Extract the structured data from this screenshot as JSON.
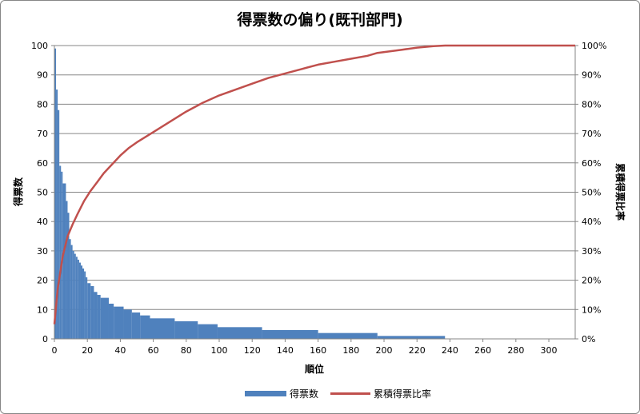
{
  "chart_data": {
    "type": "bar+line",
    "title": "得票数の偏り(既刊部門)",
    "xlabel": "順位",
    "ylabel": "得票数",
    "y2label": "累積得票比率",
    "xlim": [
      0,
      316
    ],
    "ylim": [
      0,
      100
    ],
    "y2lim": [
      0,
      100
    ],
    "x_ticks": [
      0,
      20,
      40,
      60,
      80,
      100,
      120,
      140,
      160,
      180,
      200,
      220,
      240,
      260,
      280,
      300
    ],
    "y_ticks": [
      0,
      10,
      20,
      30,
      40,
      50,
      60,
      70,
      80,
      90,
      100
    ],
    "y2_ticks": [
      "0%",
      "10%",
      "20%",
      "30%",
      "40%",
      "50%",
      "60%",
      "70%",
      "80%",
      "90%",
      "100%"
    ],
    "grid": "horizontal",
    "legend": "bottom",
    "series": [
      {
        "name": "得票数",
        "kind": "bar",
        "color": "#4f81bd",
        "segments": [
          {
            "from": 0,
            "to": 1,
            "value": 99
          },
          {
            "from": 1,
            "to": 2,
            "value": 85
          },
          {
            "from": 2,
            "to": 3,
            "value": 78
          },
          {
            "from": 3,
            "to": 4,
            "value": 59
          },
          {
            "from": 4,
            "to": 5,
            "value": 57
          },
          {
            "from": 5,
            "to": 7,
            "value": 53
          },
          {
            "from": 7,
            "to": 8,
            "value": 47
          },
          {
            "from": 8,
            "to": 9,
            "value": 43
          },
          {
            "from": 9,
            "to": 10,
            "value": 34
          },
          {
            "from": 10,
            "to": 11,
            "value": 32
          },
          {
            "from": 11,
            "to": 12,
            "value": 30
          },
          {
            "from": 12,
            "to": 13,
            "value": 29
          },
          {
            "from": 13,
            "to": 14,
            "value": 28
          },
          {
            "from": 14,
            "to": 15,
            "value": 27
          },
          {
            "from": 15,
            "to": 16,
            "value": 26
          },
          {
            "from": 16,
            "to": 17,
            "value": 25
          },
          {
            "from": 17,
            "to": 18,
            "value": 24
          },
          {
            "from": 18,
            "to": 19,
            "value": 23
          },
          {
            "from": 19,
            "to": 20,
            "value": 21
          },
          {
            "from": 20,
            "to": 22,
            "value": 19
          },
          {
            "from": 22,
            "to": 24,
            "value": 18
          },
          {
            "from": 24,
            "to": 26,
            "value": 16
          },
          {
            "from": 26,
            "to": 28,
            "value": 15
          },
          {
            "from": 28,
            "to": 33,
            "value": 14
          },
          {
            "from": 33,
            "to": 36,
            "value": 12
          },
          {
            "from": 36,
            "to": 42,
            "value": 11
          },
          {
            "from": 42,
            "to": 47,
            "value": 10
          },
          {
            "from": 47,
            "to": 52,
            "value": 9
          },
          {
            "from": 52,
            "to": 58,
            "value": 8
          },
          {
            "from": 58,
            "to": 73,
            "value": 7
          },
          {
            "from": 73,
            "to": 87,
            "value": 6
          },
          {
            "from": 87,
            "to": 99,
            "value": 5
          },
          {
            "from": 99,
            "to": 126,
            "value": 4
          },
          {
            "from": 126,
            "to": 160,
            "value": 3
          },
          {
            "from": 160,
            "to": 196,
            "value": 2
          },
          {
            "from": 196,
            "to": 237,
            "value": 1
          }
        ]
      },
      {
        "name": "累積得票比率",
        "kind": "line",
        "axis": "right",
        "color": "#c0504d",
        "x": [
          0,
          2,
          5,
          8,
          11,
          14,
          18,
          22,
          26,
          30,
          35,
          40,
          45,
          50,
          60,
          70,
          80,
          90,
          100,
          110,
          120,
          130,
          140,
          150,
          160,
          170,
          180,
          190,
          196,
          210,
          220,
          230,
          237,
          316
        ],
        "values": [
          5,
          17,
          28,
          35,
          39,
          42.5,
          47,
          50.5,
          53.5,
          56.5,
          59.5,
          62.5,
          65,
          67,
          70.5,
          74,
          77.5,
          80.5,
          83,
          85,
          87,
          89,
          90.5,
          92,
          93.5,
          94.5,
          95.5,
          96.5,
          97.5,
          98.5,
          99.3,
          99.8,
          100,
          100
        ]
      }
    ]
  }
}
